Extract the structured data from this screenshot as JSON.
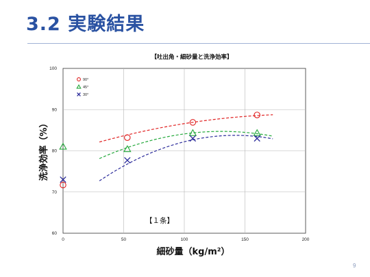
{
  "slide": {
    "title": "3.2 実験結果",
    "page_number": "9"
  },
  "chart_data": {
    "type": "scatter",
    "title": "【吐出角・細砂量と洗浄効率】",
    "xlabel": "細砂量（kg/m²）",
    "ylabel": "洗浄効率（%）",
    "xlim": [
      0,
      200
    ],
    "ylim": [
      60,
      100
    ],
    "x_ticks": [
      0,
      50,
      100,
      150,
      200
    ],
    "y_ticks": [
      60,
      70,
      80,
      90,
      100
    ],
    "grid": true,
    "legend_position": "top-left",
    "annotation": "【１条】",
    "series": [
      {
        "name": "90°",
        "color": "#e02020",
        "marker": "circle",
        "x": [
          0,
          53,
          107,
          160
        ],
        "y": [
          71.7,
          83.2,
          86.9,
          88.7
        ],
        "trend": {
          "x0": 30,
          "x1": 173,
          "a": 79.5,
          "b": 0.095,
          "c": -0.00024
        }
      },
      {
        "name": "45°",
        "color": "#22a83a",
        "marker": "triangle",
        "x": [
          0,
          53,
          107,
          160
        ],
        "y": [
          81.0,
          80.4,
          84.3,
          84.3
        ],
        "trend": {
          "x0": 30,
          "x1": 173,
          "a": 73.6,
          "b": 0.17,
          "c": -0.00065
        }
      },
      {
        "name": "30°",
        "color": "#2a2a9a",
        "marker": "x",
        "x": [
          0,
          53,
          107,
          160
        ],
        "y": [
          73.0,
          77.7,
          83.0,
          83.0
        ],
        "trend": {
          "x0": 30,
          "x1": 173,
          "a": 66.0,
          "b": 0.25,
          "c": -0.00088
        }
      }
    ]
  }
}
